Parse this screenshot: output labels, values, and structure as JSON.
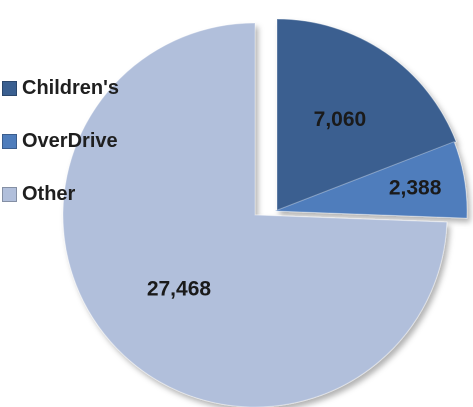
{
  "chart_data": {
    "type": "pie",
    "exploded": true,
    "categories": [
      "Children's",
      "OverDrive",
      "Other"
    ],
    "values": [
      7060,
      2388,
      27468
    ],
    "data_labels": [
      "7,060",
      "2,388",
      "27,468"
    ],
    "colors": [
      "#3a5f90",
      "#4f7dbc",
      "#b1bfdb"
    ],
    "legend_position": "left"
  }
}
